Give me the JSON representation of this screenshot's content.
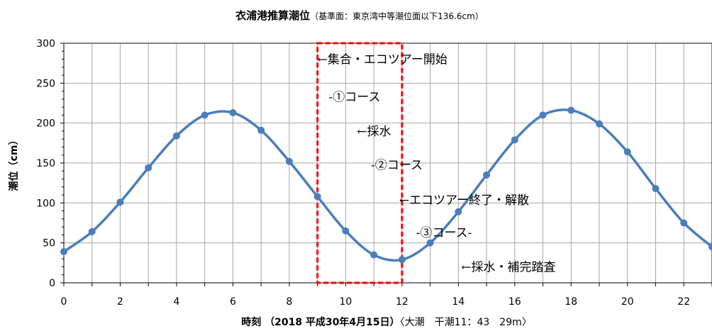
{
  "chart_data": {
    "type": "line",
    "title": "衣浦港推算潮位",
    "subtitle": "（基準面：東京湾中等潮位面以下136.6cm）",
    "xlabel": "時刻 （2018 平成30年4月15日）",
    "xlabel_note": "〈大潮　干潮11：43　29m〉",
    "ylabel": "潮位（cm）",
    "xlim": [
      0,
      23
    ],
    "ylim": [
      0,
      300
    ],
    "x_ticks": [
      "0",
      "2",
      "4",
      "6",
      "8",
      "10",
      "12",
      "14",
      "16",
      "18",
      "20",
      "22"
    ],
    "y_ticks": [
      "0",
      "50",
      "100",
      "150",
      "200",
      "250",
      "300"
    ],
    "grid": true,
    "series": [
      {
        "x": [
          0,
          1,
          2,
          3,
          4,
          5,
          6,
          7,
          8,
          9,
          10,
          11,
          12,
          13,
          14,
          15,
          16,
          17,
          18,
          19,
          20,
          21,
          22,
          23
        ],
        "values": [
          39,
          64,
          101,
          144,
          184,
          210,
          213,
          191,
          152,
          108,
          65,
          35,
          29,
          50,
          89,
          135,
          179,
          210,
          216,
          199,
          164,
          118,
          75,
          45
        ],
        "color": "#4a7ebb"
      }
    ],
    "highlight_box": {
      "x_start": 9,
      "x_end": 12,
      "color": "#ff0000"
    },
    "annotations": [
      {
        "text": "←集合・エコツアー開始",
        "x": 9.0,
        "y": 280
      },
      {
        "text": "-①コース",
        "x": 9.4,
        "y": 233
      },
      {
        "text": "←採水",
        "x": 10.4,
        "y": 190
      },
      {
        "text": "-②コース",
        "x": 10.9,
        "y": 148
      },
      {
        "text": "←エコツアー終了・解散",
        "x": 11.9,
        "y": 104
      },
      {
        "text": "-③コース-",
        "x": 12.5,
        "y": 63
      },
      {
        "text": "←採水・補完踏査",
        "x": 14.1,
        "y": 20
      }
    ]
  }
}
